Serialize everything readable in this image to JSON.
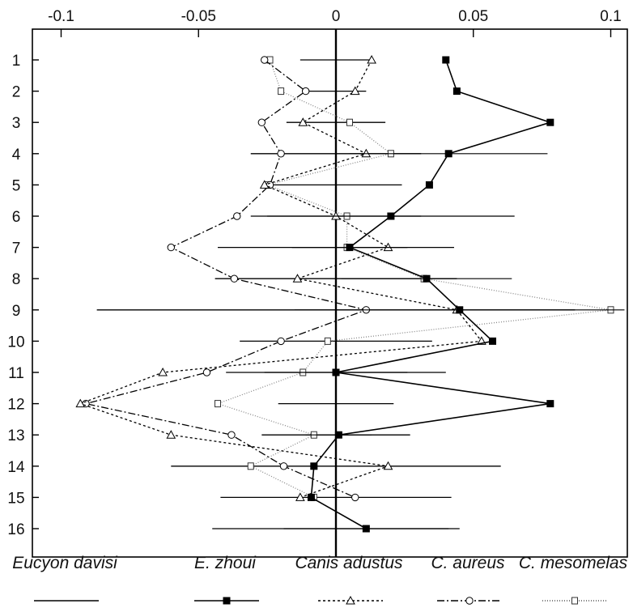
{
  "chart_data": {
    "type": "line",
    "orientation": "horizontal",
    "x_ticks": [
      -0.1,
      -0.05,
      0,
      0.05,
      0.1
    ],
    "x_tick_labels": [
      "-0.1",
      "-0.05",
      "0",
      "0.05",
      "0.1"
    ],
    "xlim": [
      -0.1,
      0.1
    ],
    "y_categories": [
      1,
      2,
      3,
      4,
      5,
      6,
      7,
      8,
      9,
      10,
      11,
      12,
      13,
      14,
      15,
      16
    ],
    "y_tick_labels": [
      "1",
      "2",
      "3",
      "4",
      "5",
      "6",
      "7",
      "8",
      "9",
      "10",
      "11",
      "12",
      "13",
      "14",
      "15",
      "16"
    ],
    "grid": false,
    "legend_position": "bottom",
    "reference": {
      "name": "Eucyon davisi",
      "value": 0,
      "error_half_width": [
        0.013,
        0.011,
        0.018,
        0.031,
        0.024,
        0.031,
        0.043,
        0.044,
        0.087,
        0.035,
        0.026,
        0.021,
        0.027,
        0.06,
        0.042,
        0.045
      ],
      "color": "#000000"
    },
    "series": [
      {
        "name": "E. zhoui",
        "marker": "filled-square",
        "line": "solid",
        "color": "#000000",
        "values": [
          0.04,
          0.044,
          0.078,
          0.041,
          0.034,
          0.02,
          0.005,
          0.033,
          0.045,
          0.057,
          0.0,
          0.078,
          0.001,
          -0.008,
          -0.009,
          0.011
        ],
        "errors": [
          null,
          null,
          null,
          0.036,
          null,
          0.045,
          0.021,
          0.031,
          0.06,
          null,
          0.04,
          null,
          0.012,
          null,
          null,
          0.03
        ]
      },
      {
        "name": "Canis adustus",
        "marker": "open-triangle",
        "line": "dotted",
        "color": "#000000",
        "values": [
          0.013,
          0.007,
          -0.012,
          0.011,
          -0.026,
          0.0,
          0.019,
          -0.014,
          0.044,
          0.053,
          -0.063,
          -0.093,
          -0.06,
          0.019,
          -0.013,
          null
        ]
      },
      {
        "name": "C. aureus",
        "marker": "open-circle",
        "line": "dash-dot",
        "color": "#000000",
        "values": [
          -0.026,
          -0.011,
          -0.027,
          -0.02,
          -0.024,
          -0.036,
          -0.06,
          -0.037,
          0.011,
          -0.02,
          -0.047,
          -0.091,
          -0.038,
          -0.019,
          0.007,
          null
        ]
      },
      {
        "name": "C. mesomelas",
        "marker": "open-square",
        "line": "fine-dotted",
        "color": "#888888",
        "values": [
          -0.024,
          -0.02,
          0.005,
          0.02,
          -0.025,
          0.004,
          0.004,
          0.032,
          0.1,
          -0.003,
          -0.012,
          -0.043,
          -0.008,
          -0.031,
          -0.008,
          null
        ]
      }
    ],
    "legend_entries": [
      "Eucyon davisi",
      "E. zhoui",
      "Canis adustus",
      "C. aureus",
      "C. mesomelas"
    ]
  }
}
